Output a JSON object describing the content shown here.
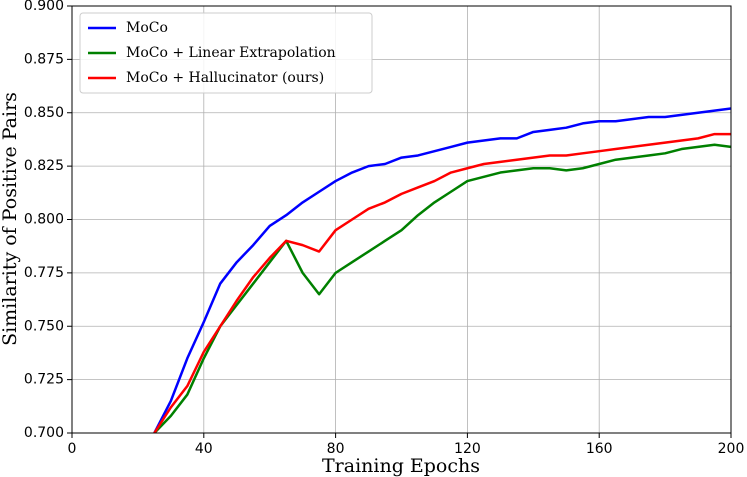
{
  "chart_data": {
    "type": "line",
    "x_label": "Training Epochs",
    "y_label": "Similarity of Positive Pairs",
    "x": [
      25,
      30,
      35,
      40,
      45,
      50,
      55,
      60,
      65,
      70,
      75,
      80,
      85,
      90,
      95,
      100,
      105,
      110,
      115,
      120,
      125,
      130,
      135,
      140,
      145,
      150,
      155,
      160,
      165,
      170,
      175,
      180,
      185,
      190,
      195,
      200
    ],
    "series": [
      {
        "name": "MoCo",
        "color": "#0000ff",
        "values": [
          0.7,
          0.715,
          0.735,
          0.752,
          0.77,
          0.78,
          0.788,
          0.797,
          0.802,
          0.808,
          0.813,
          0.818,
          0.822,
          0.825,
          0.826,
          0.829,
          0.83,
          0.832,
          0.834,
          0.836,
          0.837,
          0.838,
          0.838,
          0.841,
          0.842,
          0.843,
          0.845,
          0.846,
          0.846,
          0.847,
          0.848,
          0.848,
          0.849,
          0.85,
          0.851,
          0.852
        ]
      },
      {
        "name": "MoCo + Linear Extrapolation",
        "color": "#008000",
        "values": [
          0.7,
          0.708,
          0.718,
          0.735,
          0.75,
          0.76,
          0.77,
          0.78,
          0.79,
          0.775,
          0.765,
          0.775,
          0.78,
          0.785,
          0.79,
          0.795,
          0.802,
          0.808,
          0.813,
          0.818,
          0.82,
          0.822,
          0.823,
          0.824,
          0.824,
          0.823,
          0.824,
          0.826,
          0.828,
          0.829,
          0.83,
          0.831,
          0.833,
          0.834,
          0.835,
          0.834
        ]
      },
      {
        "name": "MoCo + Hallucinator (ours)",
        "color": "#ff0000",
        "values": [
          0.7,
          0.712,
          0.722,
          0.738,
          0.75,
          0.762,
          0.773,
          0.782,
          0.79,
          0.788,
          0.785,
          0.795,
          0.8,
          0.805,
          0.808,
          0.812,
          0.815,
          0.818,
          0.822,
          0.824,
          0.826,
          0.827,
          0.828,
          0.829,
          0.83,
          0.83,
          0.831,
          0.832,
          0.833,
          0.834,
          0.835,
          0.836,
          0.837,
          0.838,
          0.84,
          0.84
        ]
      }
    ],
    "xlim": [
      0,
      200
    ],
    "xticks": [
      0,
      40,
      80,
      120,
      160,
      200
    ],
    "ylim": [
      0.7,
      0.9
    ],
    "yticks": [
      {
        "value": 0.7,
        "label": "0.700"
      },
      {
        "value": 0.725,
        "label": "0.725"
      },
      {
        "value": 0.75,
        "label": "0.750"
      },
      {
        "value": 0.775,
        "label": "0.775"
      },
      {
        "value": 0.8,
        "label": "0.800"
      },
      {
        "value": 0.825,
        "label": "0.825"
      },
      {
        "value": 0.85,
        "label": "0.850"
      },
      {
        "value": 0.875,
        "label": "0.875"
      },
      {
        "value": 0.9,
        "label": "0.900"
      }
    ],
    "grid": true,
    "legend": "upper-left"
  }
}
